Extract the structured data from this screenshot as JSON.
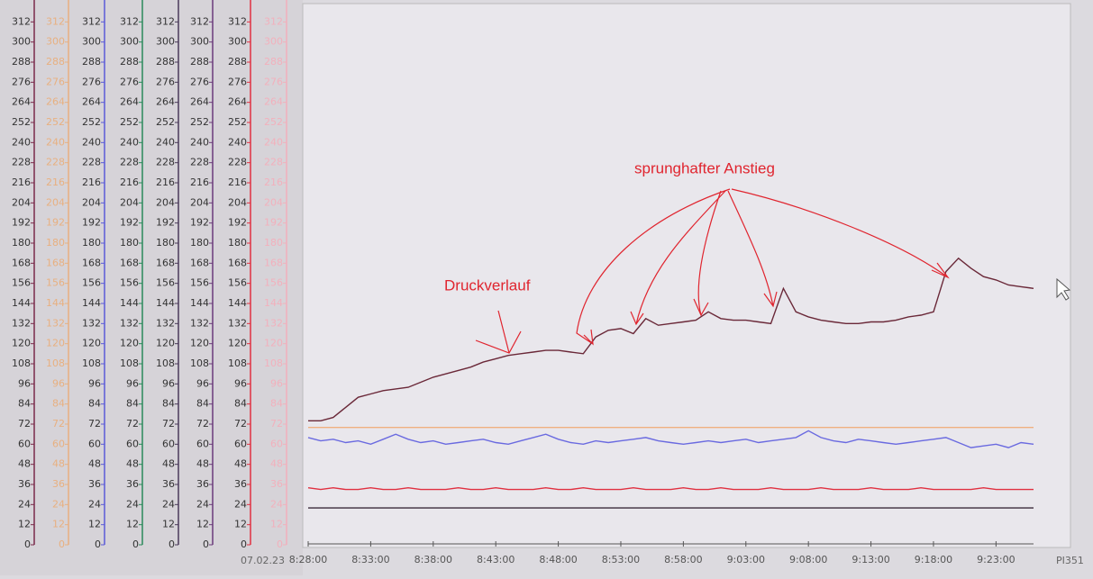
{
  "chart_data": {
    "type": "line",
    "date_label": "07.02.23",
    "tag": "PI351",
    "annotations": [
      "Druckverlauf",
      "sprunghafter Anstieg"
    ],
    "categories": [
      "8:28:00",
      null,
      null,
      null,
      null,
      "8:33:00",
      null,
      null,
      null,
      null,
      "8:38:00",
      null,
      null,
      null,
      null,
      "8:43:00",
      null,
      null,
      null,
      null,
      "8:48:00",
      null,
      null,
      null,
      null,
      "8:53:00",
      null,
      null,
      null,
      null,
      "8:58:00",
      null,
      null,
      null,
      null,
      "9:03:00",
      null,
      null,
      null,
      null,
      "9:08:00",
      null,
      null,
      null,
      null,
      "9:13:00",
      null,
      null,
      null,
      null,
      "9:18:00",
      null,
      null,
      null,
      null,
      "9:23:00",
      null,
      null,
      null
    ],
    "ylim": [
      0,
      324
    ],
    "yticks": [
      0,
      12,
      24,
      36,
      48,
      60,
      72,
      84,
      96,
      108,
      120,
      132,
      144,
      156,
      168,
      180,
      192,
      204,
      216,
      228,
      240,
      252,
      264,
      276,
      288,
      300,
      312
    ],
    "axis_colors": [
      "#7a2a4a",
      "#e8b080",
      "#5a5ad8",
      "#2a8a5a",
      "#4a3a5a",
      "#6a3a7a",
      "#e03040",
      "#f2b0bc"
    ],
    "series": [
      {
        "color": "#f0b080",
        "values": [
          70,
          70,
          70,
          70,
          70,
          70,
          70,
          70,
          70,
          70,
          70,
          70,
          70,
          70,
          70,
          70,
          70,
          70,
          70,
          70,
          70,
          70,
          70,
          70,
          70,
          70,
          70,
          70,
          70,
          70,
          70,
          70,
          70,
          70,
          70,
          70,
          70,
          70,
          70,
          70,
          70,
          70,
          70,
          70,
          70,
          70,
          70,
          70,
          70,
          70,
          70,
          70,
          70,
          70,
          70,
          70,
          70,
          70,
          70
        ]
      },
      {
        "color": "#6a6ae0",
        "values": [
          64,
          62,
          63,
          61,
          62,
          60,
          63,
          66,
          63,
          61,
          62,
          60,
          61,
          62,
          63,
          61,
          60,
          62,
          64,
          66,
          63,
          61,
          60,
          62,
          61,
          62,
          63,
          64,
          62,
          61,
          60,
          61,
          62,
          61,
          62,
          63,
          61,
          62,
          63,
          64,
          68,
          64,
          62,
          61,
          63,
          62,
          61,
          60,
          61,
          62,
          63,
          64,
          61,
          58,
          59,
          60,
          58,
          61,
          60
        ]
      },
      {
        "color": "#e03040",
        "values": [
          34,
          33,
          34,
          33,
          33,
          34,
          33,
          33,
          34,
          33,
          33,
          33,
          34,
          33,
          33,
          34,
          33,
          33,
          33,
          34,
          33,
          33,
          34,
          33,
          33,
          33,
          34,
          33,
          33,
          33,
          34,
          33,
          33,
          34,
          33,
          33,
          33,
          34,
          33,
          33,
          33,
          34,
          33,
          33,
          33,
          34,
          33,
          33,
          33,
          34,
          33,
          33,
          33,
          33,
          34,
          33,
          33,
          33,
          33
        ]
      },
      {
        "color": "#3a2a3a",
        "values": [
          22,
          22,
          22,
          22,
          22,
          22,
          22,
          22,
          22,
          22,
          22,
          22,
          22,
          22,
          22,
          22,
          22,
          22,
          22,
          22,
          22,
          22,
          22,
          22,
          22,
          22,
          22,
          22,
          22,
          22,
          22,
          22,
          22,
          22,
          22,
          22,
          22,
          22,
          22,
          22,
          22,
          22,
          22,
          22,
          22,
          22,
          22,
          22,
          22,
          22,
          22,
          22,
          22,
          22,
          22,
          22,
          22,
          22,
          22
        ]
      },
      {
        "color": "#6a2838",
        "values": [
          74,
          74,
          76,
          82,
          88,
          90,
          92,
          93,
          94,
          97,
          100,
          102,
          104,
          106,
          109,
          111,
          113,
          114,
          115,
          116,
          116,
          115,
          114,
          124,
          128,
          129,
          126,
          135,
          131,
          132,
          133,
          134,
          139,
          135,
          134,
          134,
          133,
          132,
          153,
          139,
          136,
          134,
          133,
          132,
          132,
          133,
          133,
          134,
          136,
          137,
          139,
          163,
          171,
          165,
          160,
          158,
          155,
          154,
          153
        ]
      }
    ]
  }
}
